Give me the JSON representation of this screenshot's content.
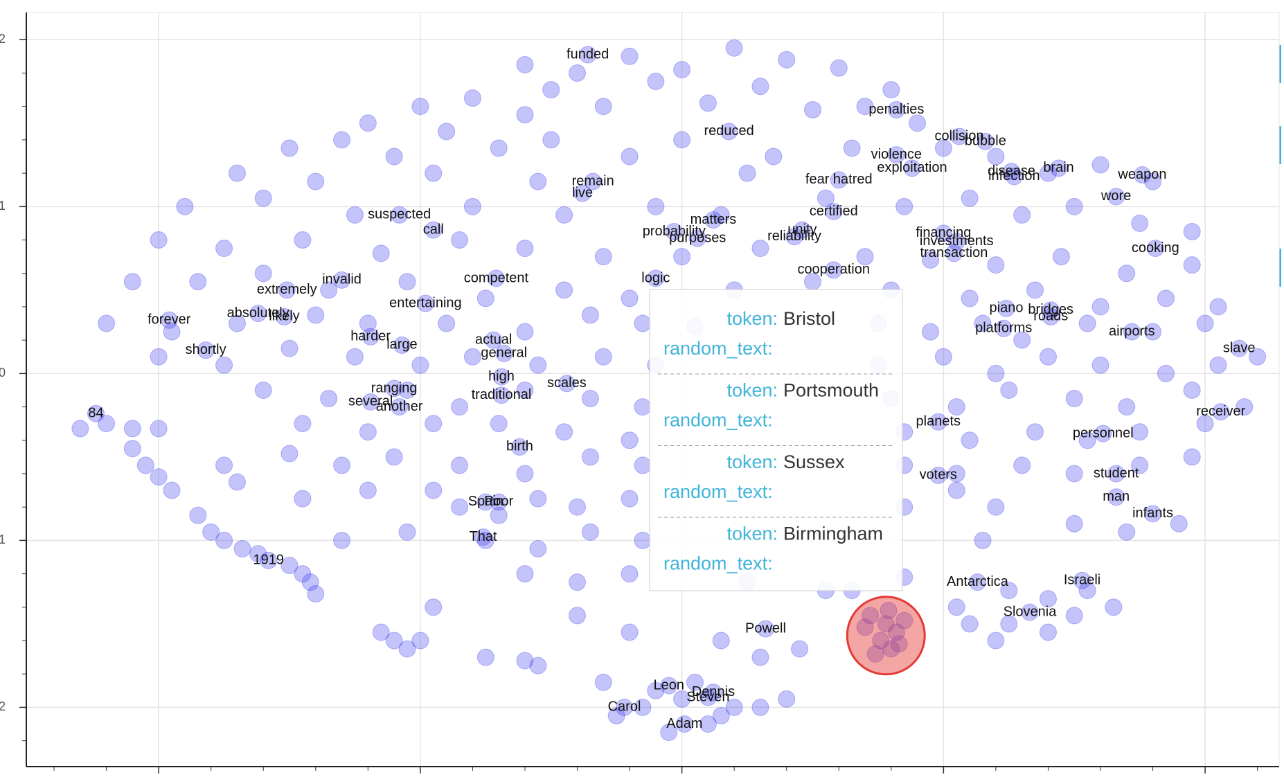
{
  "chart_data": {
    "type": "scatter",
    "xlim": [
      -2.506,
      2.283
    ],
    "ylim": [
      -2.355,
      2.163
    ],
    "xticks": [
      -2,
      -1,
      0,
      1,
      2
    ],
    "yticks": [
      2,
      1,
      0,
      -1,
      -2
    ],
    "grid": true,
    "color": "#3c3cf0",
    "x": [
      -0.6,
      -0.4,
      -0.2,
      0,
      0.2,
      0.4,
      0.6,
      -0.5,
      -0.1,
      0.3,
      -1.0,
      -0.8,
      -0.6,
      -0.3,
      0.1,
      0.5,
      0.7,
      0.9,
      -1.2,
      0.8,
      -1.5,
      -1.3,
      -1.1,
      -0.9,
      -0.7,
      -0.5,
      -0.2,
      0.0,
      0.35,
      0.65,
      1.0,
      1.2,
      1.4,
      1.6,
      1.8,
      -1.7,
      -1.4,
      -0.95,
      -0.55,
      0.25,
      -1.9,
      -1.6,
      -1.25,
      -0.8,
      -0.45,
      -0.1,
      0.15,
      0.55,
      0.85,
      1.1,
      1.3,
      1.5,
      1.75,
      1.95,
      -2.0,
      -1.75,
      -1.45,
      -1.15,
      -0.85,
      -0.6,
      -0.3,
      0.0,
      0.3,
      0.7,
      0.95,
      1.2,
      1.45,
      1.7,
      1.95,
      -2.1,
      -1.85,
      -1.6,
      -1.35,
      -1.05,
      -0.75,
      -0.45,
      -0.2,
      0.2,
      0.5,
      0.8,
      1.1,
      1.35,
      1.6,
      1.85,
      2.05,
      -2.2,
      -1.95,
      -1.7,
      -1.4,
      -1.2,
      -0.9,
      -0.6,
      -0.35,
      -0.15,
      0.05,
      0.75,
      0.95,
      1.15,
      1.3,
      1.55,
      1.8,
      2.0,
      2.2,
      -2.0,
      -1.75,
      -1.5,
      -1.25,
      -1.0,
      -0.8,
      -0.55,
      -0.3,
      -0.1,
      0.75,
      1.0,
      1.2,
      1.4,
      1.6,
      1.85,
      2.05,
      -1.6,
      -1.35,
      -1.05,
      -0.85,
      -0.6,
      -0.35,
      -0.15,
      0.8,
      1.05,
      1.25,
      1.5,
      1.7,
      1.95,
      2.15,
      -2.3,
      -2.2,
      -2.1,
      -2.0,
      -1.45,
      -1.2,
      -0.95,
      -0.7,
      -0.45,
      -0.2,
      0.85,
      1.1,
      1.35,
      1.55,
      1.75,
      2.0,
      -2.1,
      -2.05,
      -1.75,
      -1.5,
      -1.3,
      -1.1,
      -0.85,
      -0.6,
      -0.35,
      -0.15,
      0.85,
      1.05,
      1.3,
      1.5,
      1.75,
      1.95,
      -2.0,
      -1.95,
      -1.7,
      -1.45,
      -1.2,
      -0.95,
      -0.85,
      -0.7,
      -0.55,
      -0.4,
      -0.2,
      0.85,
      1.05,
      1.2,
      1.5,
      -1.85,
      -1.8,
      -1.75,
      -1.68,
      -1.62,
      -1.3,
      -1.05,
      -0.75,
      -0.55,
      -0.35,
      -0.15,
      1.15,
      1.7,
      1.9,
      -1.5,
      -1.45,
      -1.42,
      -1.4,
      -0.6,
      -0.4,
      -0.2,
      0.25,
      0.55,
      0.85,
      1.05,
      1.25,
      1.4,
      1.55,
      1.65,
      -1.15,
      -1.1,
      -1.05,
      -1.0,
      -0.95,
      -0.75,
      -0.6,
      -0.2,
      0.15,
      0.3,
      0.45,
      1.1,
      1.25,
      1.4,
      1.5,
      1.2,
      -0.3,
      -0.1,
      0.05,
      0.2,
      0.4,
      -0.25,
      -0.15,
      0.0,
      0.1,
      0.15,
      -0.05,
      0.3,
      -0.55,
      -0.4,
      0.65,
      0.72,
      0.78,
      0.82,
      0.76,
      0.8,
      0.7,
      0.85,
      0.74,
      0.79,
      0.83
    ],
    "y": [
      1.85,
      1.8,
      1.9,
      1.82,
      1.95,
      1.88,
      1.83,
      1.7,
      1.75,
      1.72,
      1.6,
      1.65,
      1.55,
      1.6,
      1.62,
      1.58,
      1.6,
      1.5,
      1.5,
      1.7,
      1.35,
      1.4,
      1.3,
      1.45,
      1.35,
      1.4,
      1.3,
      1.4,
      1.3,
      1.35,
      1.35,
      1.3,
      1.2,
      1.25,
      1.15,
      1.2,
      1.15,
      1.2,
      1.15,
      1.2,
      1.0,
      1.05,
      0.95,
      1.0,
      0.95,
      1.0,
      0.95,
      1.05,
      1.0,
      1.05,
      0.95,
      1.0,
      0.9,
      0.85,
      0.8,
      0.75,
      0.8,
      0.72,
      0.8,
      0.75,
      0.7,
      0.7,
      0.75,
      0.7,
      0.68,
      0.65,
      0.7,
      0.6,
      0.65,
      0.55,
      0.55,
      0.6,
      0.5,
      0.55,
      0.45,
      0.5,
      0.45,
      0.5,
      0.55,
      0.5,
      0.45,
      0.5,
      0.4,
      0.45,
      0.4,
      0.3,
      0.25,
      0.3,
      0.35,
      0.3,
      0.3,
      0.25,
      0.35,
      0.3,
      0.28,
      0.3,
      0.25,
      0.3,
      0.2,
      0.3,
      0.25,
      0.3,
      0.1,
      0.1,
      0.05,
      0.15,
      0.1,
      0.05,
      0.1,
      0.05,
      0.1,
      0.05,
      0.05,
      0.1,
      0.0,
      0.1,
      0.05,
      0.0,
      0.05,
      -0.1,
      -0.15,
      -0.1,
      -0.2,
      -0.1,
      -0.15,
      -0.2,
      -0.15,
      -0.2,
      -0.1,
      -0.15,
      -0.2,
      -0.1,
      -0.2,
      -0.33,
      -0.3,
      -0.33,
      -0.33,
      -0.3,
      -0.35,
      -0.3,
      -0.3,
      -0.35,
      -0.4,
      -0.35,
      -0.4,
      -0.35,
      -0.4,
      -0.35,
      -0.3,
      -0.45,
      -0.55,
      -0.55,
      -0.48,
      -0.55,
      -0.5,
      -0.55,
      -0.6,
      -0.5,
      -0.55,
      -0.55,
      -0.6,
      -0.55,
      -0.6,
      -0.55,
      -0.5,
      -0.62,
      -0.7,
      -0.65,
      -0.75,
      -0.7,
      -0.7,
      -0.8,
      -0.85,
      -0.75,
      -0.8,
      -0.75,
      -0.8,
      -0.7,
      -0.8,
      -0.9,
      -0.85,
      -0.95,
      -1.0,
      -1.05,
      -1.08,
      -1.0,
      -0.95,
      -1.0,
      -1.05,
      -0.95,
      -1.0,
      -1.0,
      -0.95,
      -0.9,
      -1.15,
      -1.2,
      -1.25,
      -1.32,
      -1.2,
      -1.25,
      -1.2,
      -1.25,
      -1.3,
      -1.22,
      -1.4,
      -1.3,
      -1.35,
      -1.3,
      -1.4,
      -1.55,
      -1.6,
      -1.65,
      -1.6,
      -1.4,
      -1.7,
      -1.72,
      -1.55,
      -1.6,
      -1.7,
      -1.65,
      -1.5,
      -1.5,
      -1.55,
      -1.45,
      -1.6,
      -1.85,
      -1.9,
      -1.85,
      -2.0,
      -1.95,
      -2.05,
      -2.0,
      -1.95,
      -2.1,
      -2.05,
      -2.15,
      -2.0,
      -1.75,
      -1.45,
      -1.3,
      -1.45,
      -1.5,
      -1.55,
      -1.6,
      -1.65,
      -1.52,
      -1.48,
      -1.68,
      -1.42,
      -1.62
    ],
    "annotations": [
      {
        "text": "funded",
        "x": -0.36,
        "y": 1.91
      },
      {
        "text": "penalties",
        "x": 0.82,
        "y": 1.58
      },
      {
        "text": "reduced",
        "x": 0.18,
        "y": 1.45
      },
      {
        "text": "collision",
        "x": 1.06,
        "y": 1.42
      },
      {
        "text": "bubble",
        "x": 1.16,
        "y": 1.39
      },
      {
        "text": "violence",
        "x": 0.82,
        "y": 1.31
      },
      {
        "text": "exploitation",
        "x": 0.88,
        "y": 1.23
      },
      {
        "text": "disease",
        "x": 1.26,
        "y": 1.21
      },
      {
        "text": "brain",
        "x": 1.44,
        "y": 1.23
      },
      {
        "text": "infection",
        "x": 1.27,
        "y": 1.18
      },
      {
        "text": "weapon",
        "x": 1.76,
        "y": 1.19
      },
      {
        "text": "remain",
        "x": -0.34,
        "y": 1.15
      },
      {
        "text": "live",
        "x": -0.38,
        "y": 1.08
      },
      {
        "text": "fear hatred",
        "x": 0.6,
        "y": 1.16
      },
      {
        "text": "wore",
        "x": 1.66,
        "y": 1.06
      },
      {
        "text": "certified",
        "x": 0.58,
        "y": 0.97
      },
      {
        "text": "suspected",
        "x": -1.08,
        "y": 0.95
      },
      {
        "text": "call",
        "x": -0.95,
        "y": 0.86
      },
      {
        "text": "matters",
        "x": 0.12,
        "y": 0.92
      },
      {
        "text": "probability",
        "x": -0.03,
        "y": 0.85
      },
      {
        "text": "purposes",
        "x": 0.06,
        "y": 0.81
      },
      {
        "text": "unity",
        "x": 0.46,
        "y": 0.86
      },
      {
        "text": "reliability",
        "x": 0.43,
        "y": 0.82
      },
      {
        "text": "financing",
        "x": 1.0,
        "y": 0.84
      },
      {
        "text": "investments",
        "x": 1.05,
        "y": 0.79
      },
      {
        "text": "transaction",
        "x": 1.04,
        "y": 0.72
      },
      {
        "text": "cooking",
        "x": 1.81,
        "y": 0.75
      },
      {
        "text": "cooperation",
        "x": 0.58,
        "y": 0.62
      },
      {
        "text": "competent",
        "x": -0.71,
        "y": 0.57
      },
      {
        "text": "logic",
        "x": -0.1,
        "y": 0.57
      },
      {
        "text": "invalid",
        "x": -1.3,
        "y": 0.56
      },
      {
        "text": "extremely",
        "x": -1.51,
        "y": 0.5
      },
      {
        "text": "entertaining",
        "x": -0.98,
        "y": 0.42
      },
      {
        "text": "piano",
        "x": 1.24,
        "y": 0.39
      },
      {
        "text": "bridges",
        "x": 1.41,
        "y": 0.38
      },
      {
        "text": "roads",
        "x": 1.41,
        "y": 0.34
      },
      {
        "text": "forever",
        "x": -1.96,
        "y": 0.32
      },
      {
        "text": "absolutely",
        "x": -1.62,
        "y": 0.36
      },
      {
        "text": "likely",
        "x": -1.52,
        "y": 0.34
      },
      {
        "text": "platforms",
        "x": 1.23,
        "y": 0.27
      },
      {
        "text": "airports",
        "x": 1.72,
        "y": 0.25
      },
      {
        "text": "harder",
        "x": -1.19,
        "y": 0.22
      },
      {
        "text": "large",
        "x": -1.07,
        "y": 0.17
      },
      {
        "text": "actual",
        "x": -0.72,
        "y": 0.2
      },
      {
        "text": "general",
        "x": -0.68,
        "y": 0.12
      },
      {
        "text": "slave",
        "x": 2.13,
        "y": 0.15
      },
      {
        "text": "shortly",
        "x": -1.82,
        "y": 0.14
      },
      {
        "text": "high",
        "x": -0.69,
        "y": -0.02
      },
      {
        "text": "scales",
        "x": -0.44,
        "y": -0.06
      },
      {
        "text": "ranging",
        "x": -1.1,
        "y": -0.09
      },
      {
        "text": "traditional",
        "x": -0.69,
        "y": -0.13
      },
      {
        "text": "several",
        "x": -1.19,
        "y": -0.17
      },
      {
        "text": "another",
        "x": -1.08,
        "y": -0.2
      },
      {
        "text": "84",
        "x": -2.24,
        "y": -0.24
      },
      {
        "text": "receiver",
        "x": 2.06,
        "y": -0.23
      },
      {
        "text": "planets",
        "x": 0.98,
        "y": -0.29
      },
      {
        "text": "personnel",
        "x": 1.61,
        "y": -0.36
      },
      {
        "text": "birth",
        "x": -0.62,
        "y": -0.44
      },
      {
        "text": "student",
        "x": 1.66,
        "y": -0.6
      },
      {
        "text": "voters",
        "x": 0.98,
        "y": -0.61
      },
      {
        "text": "Spain",
        "x": -0.75,
        "y": -0.77
      },
      {
        "text": "Poor",
        "x": -0.7,
        "y": -0.77
      },
      {
        "text": "man",
        "x": 1.66,
        "y": -0.74
      },
      {
        "text": "infants",
        "x": 1.8,
        "y": -0.84
      },
      {
        "text": "That",
        "x": -0.76,
        "y": -0.98
      },
      {
        "text": "1919",
        "x": -1.58,
        "y": -1.12
      },
      {
        "text": "Antarctica",
        "x": 1.13,
        "y": -1.25
      },
      {
        "text": "Israeli",
        "x": 1.53,
        "y": -1.24
      },
      {
        "text": "Slovenia",
        "x": 1.33,
        "y": -1.43
      },
      {
        "text": "Powell",
        "x": 0.32,
        "y": -1.53
      },
      {
        "text": "Leon",
        "x": -0.05,
        "y": -1.87
      },
      {
        "text": "Dennis",
        "x": 0.12,
        "y": -1.91
      },
      {
        "text": "Steven",
        "x": 0.1,
        "y": -1.94
      },
      {
        "text": "Carol",
        "x": -0.22,
        "y": -2.0
      },
      {
        "text": "Adam",
        "x": 0.01,
        "y": -2.1
      }
    ],
    "highlight": {
      "x": 0.78,
      "y": -1.57,
      "color": "#e53935"
    },
    "tooltip": {
      "items": [
        {
          "key": "token:",
          "value": "Bristol",
          "extra_key": "random_text:"
        },
        {
          "key": "token:",
          "value": "Portsmouth",
          "extra_key": "random_text:"
        },
        {
          "key": "token:",
          "value": "Sussex",
          "extra_key": "random_text:"
        },
        {
          "key": "token:",
          "value": "Birmingham",
          "extra_key": "random_text:"
        }
      ]
    }
  }
}
